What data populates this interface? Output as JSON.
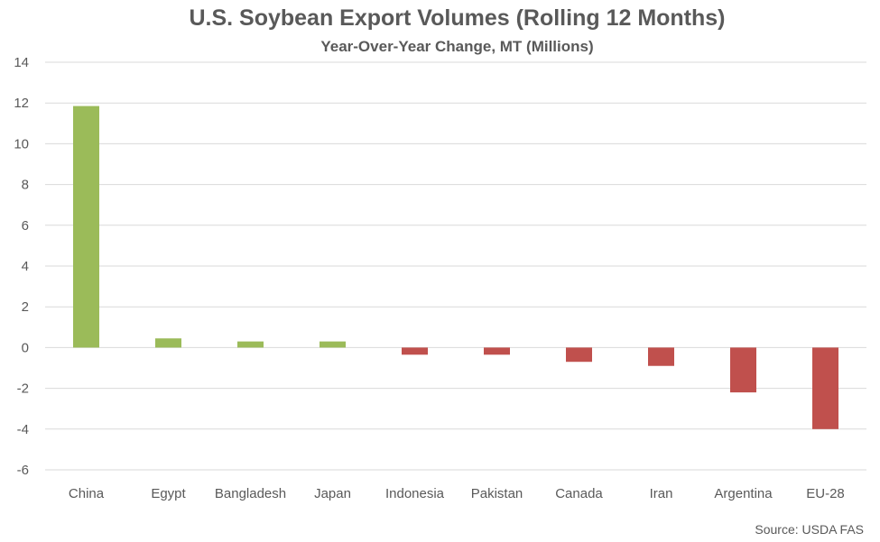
{
  "chart_data": {
    "type": "bar",
    "title": "U.S. Soybean Export Volumes (Rolling 12 Months)",
    "subtitle": "Year-Over-Year Change, MT (Millions)",
    "source": "Source: USDA FAS",
    "categories": [
      "China",
      "Egypt",
      "Bangladesh",
      "Japan",
      "Indonesia",
      "Pakistan",
      "Canada",
      "Iran",
      "Argentina",
      "EU-28"
    ],
    "values": [
      11.85,
      0.45,
      0.3,
      0.3,
      -0.35,
      -0.35,
      -0.7,
      -0.9,
      -2.2,
      -4.0
    ],
    "ylim": [
      -6,
      14
    ],
    "yticks": [
      14,
      12,
      10,
      8,
      6,
      4,
      2,
      0,
      -2,
      -4,
      -6
    ],
    "grid": true,
    "xlabel": "",
    "ylabel": "",
    "colors": {
      "positive": "#9bbb59",
      "negative": "#c0504d",
      "grid": "#d9d9d9",
      "text": "#595959"
    }
  }
}
